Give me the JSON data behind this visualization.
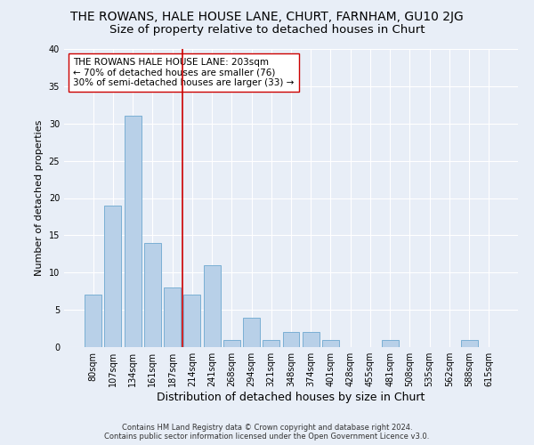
{
  "title": "THE ROWANS, HALE HOUSE LANE, CHURT, FARNHAM, GU10 2JG",
  "subtitle": "Size of property relative to detached houses in Churt",
  "xlabel": "Distribution of detached houses by size in Churt",
  "ylabel": "Number of detached properties",
  "categories": [
    "80sqm",
    "107sqm",
    "134sqm",
    "161sqm",
    "187sqm",
    "214sqm",
    "241sqm",
    "268sqm",
    "294sqm",
    "321sqm",
    "348sqm",
    "374sqm",
    "401sqm",
    "428sqm",
    "455sqm",
    "481sqm",
    "508sqm",
    "535sqm",
    "562sqm",
    "588sqm",
    "615sqm"
  ],
  "values": [
    7,
    19,
    31,
    14,
    8,
    7,
    11,
    1,
    4,
    1,
    2,
    2,
    1,
    0,
    0,
    1,
    0,
    0,
    0,
    1,
    0
  ],
  "bar_color": "#b8d0e8",
  "bar_edge_color": "#7aafd4",
  "vline_x_index": 4.5,
  "vline_color": "#cc0000",
  "annotation_box_text": "THE ROWANS HALE HOUSE LANE: 203sqm\n← 70% of detached houses are smaller (76)\n30% of semi-detached houses are larger (33) →",
  "ylim": [
    0,
    40
  ],
  "yticks": [
    0,
    5,
    10,
    15,
    20,
    25,
    30,
    35,
    40
  ],
  "background_color": "#e8eef7",
  "grid_color": "#ffffff",
  "title_fontsize": 10,
  "subtitle_fontsize": 9.5,
  "xlabel_fontsize": 9,
  "ylabel_fontsize": 8,
  "tick_fontsize": 7,
  "annotation_fontsize": 7.5,
  "footer_text": "Contains HM Land Registry data © Crown copyright and database right 2024.\nContains public sector information licensed under the Open Government Licence v3.0.",
  "footer_fontsize": 6
}
